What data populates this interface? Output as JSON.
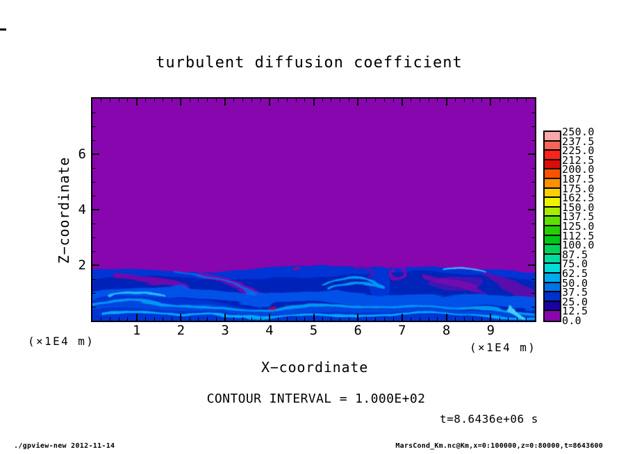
{
  "title": "turbulent  diffusion  coefficient",
  "x_axis": {
    "label": "X−coordinate",
    "unit": "(×1E4 m)",
    "tick_labels": [
      "1",
      "2",
      "3",
      "4",
      "5",
      "6",
      "7",
      "8",
      "9"
    ],
    "tick_values": [
      1,
      2,
      3,
      4,
      5,
      6,
      7,
      8,
      9
    ],
    "min": 0,
    "max": 10,
    "minor_step": 0.2
  },
  "z_axis": {
    "label": "Z−coordinate",
    "unit": "(×1E4 m)",
    "tick_labels": [
      "2",
      "4",
      "6"
    ],
    "tick_values": [
      2,
      4,
      6
    ],
    "min": 0,
    "max": 8,
    "minor_step": 0.5
  },
  "colorbar": {
    "labels": [
      "250.0",
      "237.5",
      "225.0",
      "212.5",
      "200.0",
      "187.5",
      "175.0",
      "162.5",
      "150.0",
      "137.5",
      "125.0",
      "112.5",
      "100.0",
      "87.5",
      "75.0",
      "62.5",
      "50.0",
      "37.5",
      "25.0",
      "12.5",
      "0.0"
    ],
    "colors": [
      "#f8a8a8",
      "#f4665a",
      "#fc2418",
      "#dc0c08",
      "#fc5200",
      "#fc9000",
      "#fcd000",
      "#ecf400",
      "#a8ec00",
      "#60e000",
      "#24d000",
      "#00c816",
      "#00d25c",
      "#00dca0",
      "#00dcd8",
      "#00aaee",
      "#0072e8",
      "#0030cc",
      "#1c00a4",
      "#8806ae"
    ]
  },
  "annotations": {
    "contour_interval": "CONTOUR INTERVAL =  1.000E+02",
    "time": "t=8.6436e+06 s"
  },
  "footer": {
    "left": "./gpview-new  2012-11-14",
    "right": "MarsCond_Km.nc@Km,x=0:100000,z=0:80000,t=8643600"
  },
  "chart_data": {
    "type": "heatmap",
    "title": "turbulent diffusion coefficient",
    "xlabel": "X-coordinate",
    "ylabel": "Z-coordinate",
    "axis_unit": "×1E4 m",
    "x_range_m": [
      0,
      100000
    ],
    "z_range_m": [
      0,
      80000
    ],
    "x_major_ticks": [
      1,
      2,
      3,
      4,
      5,
      6,
      7,
      8,
      9
    ],
    "z_major_ticks": [
      2,
      4,
      6
    ],
    "contour_interval": 100.0,
    "time_seconds": 8643600,
    "levels": [
      0.0,
      12.5,
      25.0,
      37.5,
      50.0,
      62.5,
      75.0,
      87.5,
      100.0,
      112.5,
      125.0,
      137.5,
      150.0,
      162.5,
      175.0,
      187.5,
      200.0,
      212.5,
      225.0,
      237.5,
      250.0
    ],
    "level_colors_low_to_high": [
      "#8806ae",
      "#1c00a4",
      "#0030cc",
      "#0072e8",
      "#00aaee",
      "#00dcd8",
      "#00dca0",
      "#00d25c",
      "#00c816",
      "#24d000",
      "#60e000",
      "#a8ec00",
      "#ecf400",
      "#fcd000",
      "#fc9000",
      "#fc5200",
      "#dc0c08",
      "#fc2418",
      "#f4665a",
      "#f8a8a8"
    ],
    "field_summary": {
      "upper_region": {
        "z_above_x1E4_m": 2.0,
        "value": 0.0,
        "color": "#8806ae",
        "description": "uniform zero diffusion (purple) from z≈2 to z=8"
      },
      "lower_region": {
        "z_below_x1E4_m": 2.0,
        "value_range": [
          0,
          100
        ],
        "description": "turbulent boundary layer: swirling filaments mostly 12.5–75 (dark blue to blue) with bright cyan streaks up to ~87.5–100 and entrained purple (≈0) tongues near the interface"
      }
    },
    "legend_position": "right",
    "grid": false
  }
}
